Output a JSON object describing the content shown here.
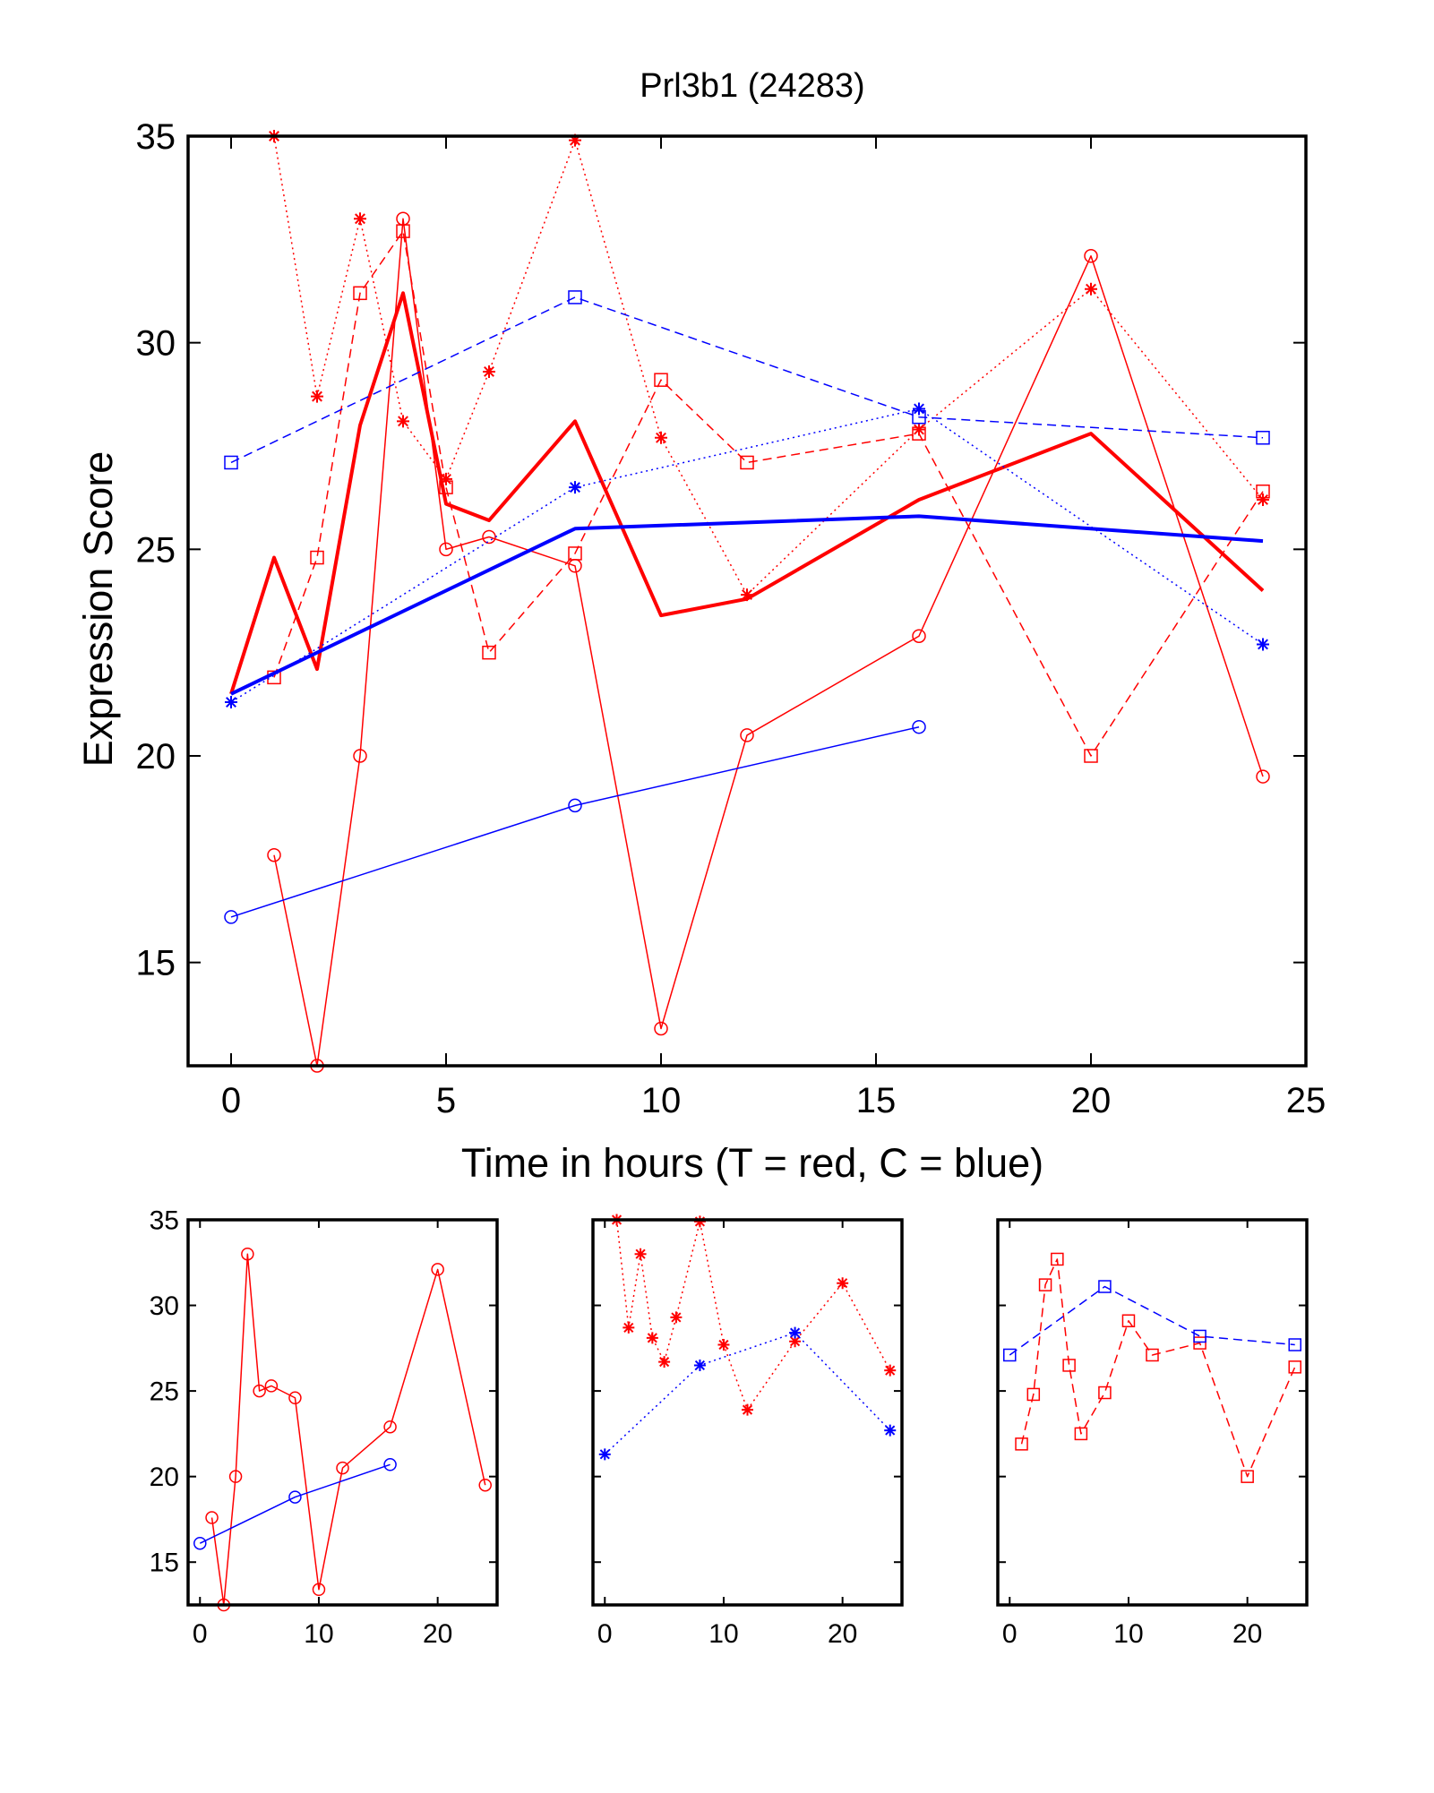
{
  "chart_data": {
    "type": "line",
    "title": "Prl3b1 (24283)",
    "xlabel": "Time in hours (T = red, C = blue)",
    "ylabel": "Expression Score",
    "colors": {
      "T": "#ff0000",
      "C": "#0000ff",
      "axis": "#000000"
    },
    "main": {
      "xlim": [
        -1,
        25
      ],
      "ylim": [
        12.5,
        35
      ],
      "xticks": [
        0,
        5,
        10,
        15,
        20,
        25
      ],
      "yticks": [
        15,
        20,
        25,
        30,
        35
      ],
      "series": [
        {
          "group": "T",
          "style": "solid",
          "marker": "circle",
          "width": 1.5,
          "x": [
            1,
            2,
            3,
            4,
            5,
            6,
            8,
            10,
            12,
            16,
            20,
            24
          ],
          "y": [
            17.6,
            12.5,
            20.0,
            33.0,
            25.0,
            25.3,
            24.6,
            13.4,
            20.5,
            22.9,
            32.1,
            19.5
          ]
        },
        {
          "group": "T",
          "style": "dotted",
          "marker": "asterisk",
          "width": 1.5,
          "x": [
            1,
            2,
            3,
            4,
            5,
            6,
            8,
            10,
            12,
            16,
            20,
            24
          ],
          "y": [
            35.0,
            28.7,
            33.0,
            28.1,
            26.7,
            29.3,
            34.9,
            27.7,
            23.9,
            27.9,
            31.3,
            26.2
          ]
        },
        {
          "group": "T",
          "style": "dashed",
          "marker": "square",
          "width": 1.5,
          "x": [
            1,
            2,
            3,
            4,
            5,
            6,
            8,
            10,
            12,
            16,
            20,
            24
          ],
          "y": [
            21.9,
            24.8,
            31.2,
            32.7,
            26.5,
            22.5,
            24.9,
            29.1,
            27.1,
            27.8,
            20.0,
            26.4
          ]
        },
        {
          "group": "T",
          "style": "solid",
          "marker": "none",
          "width": 4,
          "x": [
            0,
            1,
            2,
            3,
            4,
            5,
            6,
            8,
            10,
            12,
            16,
            20,
            24
          ],
          "y": [
            21.5,
            24.8,
            22.1,
            28.0,
            31.2,
            26.1,
            25.7,
            28.1,
            23.4,
            23.8,
            26.2,
            27.8,
            24.0
          ]
        },
        {
          "group": "C",
          "style": "solid",
          "marker": "circle",
          "width": 1.5,
          "x": [
            0,
            8,
            16
          ],
          "y": [
            16.1,
            18.8,
            20.7
          ]
        },
        {
          "group": "C",
          "style": "dotted",
          "marker": "asterisk",
          "width": 1.5,
          "x": [
            0,
            8,
            16,
            24
          ],
          "y": [
            21.3,
            26.5,
            28.4,
            22.7
          ]
        },
        {
          "group": "C",
          "style": "dashed",
          "marker": "square",
          "width": 1.5,
          "x": [
            0,
            8,
            16,
            24
          ],
          "y": [
            27.1,
            31.1,
            28.2,
            27.7
          ]
        },
        {
          "group": "C",
          "style": "solid",
          "marker": "none",
          "width": 4,
          "x": [
            0,
            8,
            16,
            24
          ],
          "y": [
            21.5,
            25.5,
            25.8,
            25.2
          ]
        }
      ]
    },
    "small_multiples": {
      "xlim": [
        -1,
        25
      ],
      "ylim": [
        12.5,
        35
      ],
      "xticks": [
        0,
        10,
        20
      ],
      "yticks": [
        15,
        20,
        25,
        30,
        35
      ],
      "panels": [
        {
          "series_indices": [
            0,
            4
          ],
          "show_yticks": true
        },
        {
          "series_indices": [
            1,
            5
          ],
          "show_yticks": false
        },
        {
          "series_indices": [
            2,
            6
          ],
          "show_yticks": false
        }
      ]
    }
  }
}
